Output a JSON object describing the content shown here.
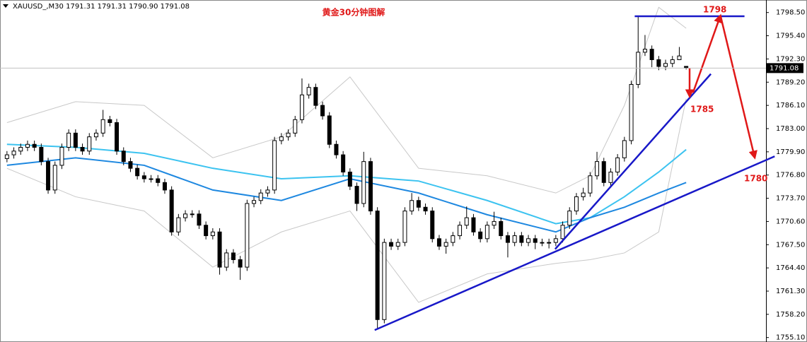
{
  "chart_data": {
    "type": "candlestick",
    "header": "XAUUSD_,M30  1791.31 1791.31 1790.90 1791.08",
    "title": "黄金30分钟图解",
    "annotations": [
      "1798",
      "1785",
      "1780"
    ],
    "colors": {
      "up": "#ffffff",
      "down": "#000000",
      "wick": "#000000"
    },
    "ylim": [
      1754.6,
      1799.7
    ],
    "yticks": [
      {
        "value": 1798.5,
        "label": "1798.50"
      },
      {
        "value": 1795.4,
        "label": "1795.40"
      },
      {
        "value": 1792.3,
        "label": "1792.30"
      },
      {
        "value": 1789.2,
        "label": "1789.20"
      },
      {
        "value": 1786.1,
        "label": "1786.10"
      },
      {
        "value": 1783.0,
        "label": "1783.00"
      },
      {
        "value": 1779.9,
        "label": "1779.90"
      },
      {
        "value": 1776.8,
        "label": "1776.80"
      },
      {
        "value": 1773.7,
        "label": "1773.70"
      },
      {
        "value": 1770.6,
        "label": "1770.60"
      },
      {
        "value": 1767.5,
        "label": "1767.50"
      },
      {
        "value": 1764.4,
        "label": "1764.40"
      },
      {
        "value": 1761.3,
        "label": "1761.30"
      },
      {
        "value": 1758.2,
        "label": "1758.20"
      },
      {
        "value": 1755.1,
        "label": "1755.10"
      }
    ],
    "last_price": {
      "value": 1791.08,
      "label": "1791.08"
    },
    "candles": {
      "open": [
        1779.0,
        1779.5,
        1780.0,
        1780.5,
        1780.9,
        1780.5,
        1778.6,
        1774.8,
        1778.1,
        1780.5,
        1782.4,
        1780.5,
        1780.0,
        1781.9,
        1782.4,
        1784.2,
        1783.8,
        1780.0,
        1778.6,
        1777.7,
        1776.7,
        1776.3,
        1776.3,
        1775.8,
        1774.8,
        1769.2,
        1771.1,
        1771.6,
        1771.6,
        1770.1,
        1768.7,
        1769.2,
        1764.5,
        1766.4,
        1765.5,
        1764.5,
        1773.0,
        1773.4,
        1774.4,
        1774.8,
        1781.4,
        1781.9,
        1782.4,
        1784.2,
        1787.5,
        1788.5,
        1786.1,
        1784.7,
        1780.9,
        1779.5,
        1777.2,
        1775.3,
        1773.0,
        1778.6,
        1772.0,
        1757.5,
        1767.8,
        1767.3,
        1767.8,
        1772.0,
        1773.4,
        1772.5,
        1772.0,
        1768.3,
        1767.3,
        1767.8,
        1768.7,
        1770.1,
        1771.1,
        1769.2,
        1768.3,
        1770.1,
        1770.6,
        1768.7,
        1767.8,
        1768.7,
        1767.8,
        1768.3,
        1767.8,
        1767.8,
        1767.8,
        1768.3,
        1770.1,
        1772.0,
        1773.9,
        1774.4,
        1776.7,
        1778.6,
        1775.8,
        1777.2,
        1779.1,
        1781.4,
        1788.9,
        1793.2,
        1793.6,
        1792.2,
        1791.3,
        1791.7,
        1792.2,
        1791.31
      ],
      "high": [
        1780.0,
        1780.5,
        1781.0,
        1781.4,
        1781.4,
        1781.0,
        1779.1,
        1778.6,
        1781.0,
        1782.9,
        1782.9,
        1781.0,
        1782.4,
        1782.9,
        1785.5,
        1784.7,
        1784.3,
        1780.5,
        1779.1,
        1778.2,
        1777.2,
        1776.8,
        1776.8,
        1776.3,
        1775.3,
        1771.6,
        1772.1,
        1772.1,
        1772.1,
        1770.6,
        1769.7,
        1769.7,
        1766.9,
        1766.9,
        1766.0,
        1773.5,
        1773.9,
        1774.9,
        1775.3,
        1781.9,
        1782.4,
        1782.9,
        1784.7,
        1789.7,
        1789.0,
        1789.0,
        1786.6,
        1785.2,
        1781.4,
        1780.0,
        1777.7,
        1775.8,
        1779.9,
        1779.1,
        1772.5,
        1768.3,
        1768.3,
        1768.3,
        1772.5,
        1774.4,
        1773.9,
        1773.0,
        1772.5,
        1768.8,
        1768.3,
        1769.2,
        1770.6,
        1772.6,
        1771.6,
        1769.7,
        1770.6,
        1771.9,
        1771.1,
        1769.2,
        1769.2,
        1769.2,
        1768.8,
        1768.8,
        1768.3,
        1768.3,
        1768.8,
        1770.6,
        1772.5,
        1774.4,
        1775.1,
        1777.2,
        1779.9,
        1779.1,
        1777.7,
        1779.6,
        1781.9,
        1789.4,
        1798.1,
        1795.5,
        1794.1,
        1792.7,
        1792.2,
        1792.7,
        1793.9,
        1791.31
      ],
      "low": [
        1778.5,
        1779.0,
        1779.5,
        1780.0,
        1780.0,
        1778.1,
        1774.3,
        1774.3,
        1777.6,
        1780.0,
        1780.0,
        1779.5,
        1779.5,
        1781.4,
        1781.9,
        1783.3,
        1779.5,
        1778.1,
        1777.2,
        1776.2,
        1775.8,
        1775.8,
        1775.3,
        1774.3,
        1768.7,
        1768.7,
        1770.6,
        1771.1,
        1769.6,
        1768.2,
        1768.2,
        1763.5,
        1764.0,
        1765.0,
        1762.8,
        1764.0,
        1772.5,
        1772.9,
        1773.9,
        1774.3,
        1780.9,
        1781.4,
        1781.9,
        1783.7,
        1787.0,
        1785.6,
        1784.2,
        1780.4,
        1779.0,
        1776.7,
        1774.8,
        1772.0,
        1772.5,
        1771.5,
        1756.3,
        1757.0,
        1766.8,
        1766.8,
        1767.3,
        1771.5,
        1772.0,
        1771.5,
        1767.8,
        1766.8,
        1766.3,
        1767.3,
        1768.2,
        1769.6,
        1768.7,
        1767.8,
        1767.8,
        1769.6,
        1768.2,
        1765.8,
        1767.3,
        1767.3,
        1767.3,
        1766.9,
        1767.3,
        1767.0,
        1767.3,
        1767.8,
        1769.6,
        1771.5,
        1773.4,
        1773.9,
        1776.2,
        1775.3,
        1775.3,
        1776.7,
        1778.6,
        1780.9,
        1788.4,
        1792.7,
        1791.2,
        1790.8,
        1790.8,
        1791.2,
        1792.2,
        1790.9
      ],
      "close": [
        1779.5,
        1780.0,
        1780.5,
        1780.9,
        1780.5,
        1778.6,
        1774.8,
        1778.1,
        1780.5,
        1782.4,
        1780.5,
        1780.0,
        1781.9,
        1782.4,
        1784.2,
        1783.8,
        1780.0,
        1778.6,
        1777.7,
        1776.7,
        1776.3,
        1776.3,
        1775.8,
        1774.8,
        1769.2,
        1771.1,
        1771.6,
        1771.6,
        1770.1,
        1768.7,
        1769.2,
        1764.5,
        1766.4,
        1765.5,
        1764.5,
        1773.0,
        1773.4,
        1774.4,
        1774.8,
        1781.4,
        1781.9,
        1782.4,
        1784.2,
        1787.5,
        1788.5,
        1786.1,
        1784.7,
        1780.9,
        1779.5,
        1777.2,
        1775.3,
        1773.0,
        1778.6,
        1772.0,
        1757.5,
        1767.8,
        1767.3,
        1767.8,
        1772.0,
        1773.4,
        1772.5,
        1772.0,
        1768.3,
        1767.3,
        1767.8,
        1768.7,
        1770.1,
        1771.1,
        1769.2,
        1768.3,
        1770.1,
        1770.6,
        1768.7,
        1767.8,
        1768.7,
        1767.8,
        1768.3,
        1767.8,
        1767.8,
        1767.8,
        1768.3,
        1770.1,
        1772.0,
        1773.9,
        1774.4,
        1776.7,
        1778.6,
        1775.8,
        1777.2,
        1779.1,
        1781.4,
        1788.9,
        1793.2,
        1793.6,
        1792.2,
        1791.3,
        1791.7,
        1792.2,
        1792.7,
        1791.08
      ]
    },
    "indicators": [
      {
        "color": "#c8c8c8",
        "x": [
          0,
          10,
          20,
          30,
          40,
          50,
          60,
          70,
          80,
          85,
          90,
          95,
          99
        ],
        "values": [
          1783.8,
          1786.6,
          1786.1,
          1779.1,
          1781.9,
          1789.9,
          1777.7,
          1776.7,
          1774.4,
          1776.7,
          1786.1,
          1799.2,
          1796.4
        ]
      },
      {
        "color": "#c8c8c8",
        "x": [
          0,
          10,
          20,
          30,
          40,
          50,
          60,
          70,
          80,
          85,
          90,
          95,
          99
        ],
        "values": [
          1777.7,
          1773.9,
          1772.0,
          1764.5,
          1769.2,
          1772.0,
          1759.8,
          1763.6,
          1765.0,
          1765.5,
          1766.4,
          1769.2,
          1787.0
        ]
      },
      {
        "color": "#3cc3f0",
        "x": [
          0,
          10,
          20,
          30,
          40,
          50,
          60,
          70,
          80,
          85,
          90,
          95,
          99
        ],
        "values": [
          1780.9,
          1780.5,
          1779.7,
          1777.7,
          1776.3,
          1776.7,
          1776.0,
          1773.4,
          1770.3,
          1771.1,
          1773.9,
          1777.2,
          1780.2
        ]
      },
      {
        "color": "#1e88e0",
        "x": [
          0,
          10,
          20,
          30,
          40,
          50,
          60,
          70,
          80,
          85,
          90,
          95,
          99
        ],
        "values": [
          1778.1,
          1779.1,
          1778.1,
          1774.8,
          1773.4,
          1776.3,
          1774.4,
          1771.5,
          1769.2,
          1771.1,
          1772.5,
          1774.4,
          1775.8
        ]
      }
    ],
    "trendlines": [
      {
        "color": "#1818c8",
        "x": [
          91.5,
          107.5
        ],
        "values": [
          1798.0,
          1798.0
        ]
      },
      {
        "color": "#1818c8",
        "x": [
          53.6,
          111.9
        ],
        "values": [
          1756.1,
          1779.3
        ]
      },
      {
        "color": "#1818c8",
        "x": [
          79.9,
          102.6
        ],
        "values": [
          1766.9,
          1790.3
        ]
      }
    ],
    "arrows": [
      {
        "color": "#e01818",
        "x": [
          99.5,
          99.5
        ],
        "values": [
          1791.1,
          1787.3
        ]
      },
      {
        "color": "#e01818",
        "x": [
          100.0,
          104.0
        ],
        "values": [
          1787.8,
          1798.1
        ]
      },
      {
        "color": "#e01818",
        "x": [
          104.0,
          109.0
        ],
        "values": [
          1798.1,
          1779.1
        ]
      }
    ]
  }
}
